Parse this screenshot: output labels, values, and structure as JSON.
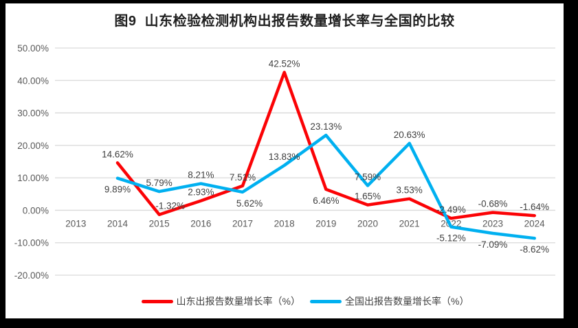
{
  "title": "图9  山东检验检测机构出报告数量增长率与全国的比较",
  "chart_data": {
    "type": "line",
    "categories": [
      "2013",
      "2014",
      "2015",
      "2016",
      "2017",
      "2018",
      "2019",
      "2020",
      "2021",
      "2022",
      "2023",
      "2024"
    ],
    "series": [
      {
        "name": "山东出报告数量增长率（%）",
        "key": "shandong",
        "color": "#fb0306",
        "values": [
          null,
          14.62,
          -1.32,
          2.93,
          7.51,
          42.52,
          6.46,
          1.65,
          3.53,
          -2.49,
          -0.68,
          -1.64
        ],
        "labels": [
          "",
          "14.62%",
          "-1.32%",
          "2.93%",
          "7.51%",
          "42.52%",
          "6.46%",
          "1.65%",
          "3.53%",
          "-2.49%",
          "-0.68%",
          "-1.64%"
        ],
        "label_pos": [
          "",
          "above",
          "above",
          "above",
          "above",
          "above",
          "below",
          "above",
          "above",
          "above",
          "above",
          "above"
        ],
        "label_dx": {
          "2": 16
        }
      },
      {
        "name": "全国出报告数量增长率（%）",
        "key": "national",
        "color": "#00b0f0",
        "values": [
          null,
          9.89,
          5.79,
          8.21,
          5.62,
          13.83,
          23.13,
          7.59,
          20.63,
          -5.12,
          -7.09,
          -8.62
        ],
        "labels": [
          "",
          "9.89%",
          "5.79%",
          "8.21%",
          "5.62%",
          "13.83%",
          "23.13%",
          "7.59%",
          "20.63%",
          "-5.12%",
          "-7.09%",
          "-8.62%"
        ],
        "label_pos": [
          "",
          "below",
          "above",
          "above",
          "below",
          "above",
          "above",
          "above",
          "above",
          "below",
          "below",
          "below"
        ],
        "label_dx": {
          "4": 10
        }
      }
    ],
    "ylim": [
      -20,
      50
    ],
    "yticks": [
      50,
      40,
      30,
      20,
      10,
      0,
      -10,
      -20
    ],
    "ytick_labels": [
      "50.00%",
      "40.00%",
      "30.00%",
      "20.00%",
      "10.00%",
      "0.00%",
      "-10.00%",
      "-20.00%"
    ],
    "xlabel": "",
    "ylabel": "",
    "grid": true,
    "legend_position": "bottom",
    "style": {
      "grid_color": "#d9d9d9",
      "axis_text_color": "#595959",
      "data_label_color": "#3f3f3f",
      "title_color": "#1f1f1f",
      "background": "#ffffff",
      "frame_color": "#000000",
      "line_width": 4.5
    }
  }
}
